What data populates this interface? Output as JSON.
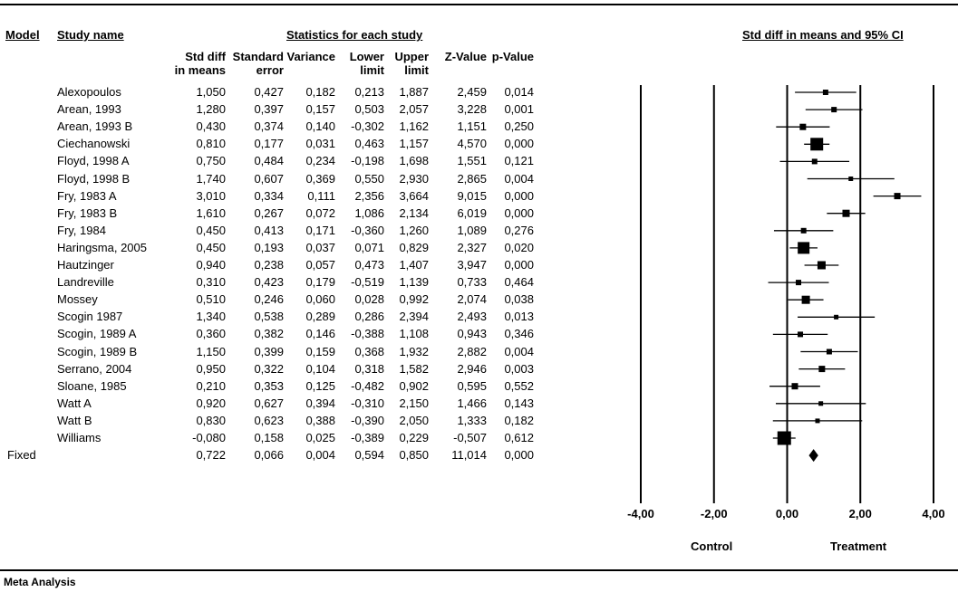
{
  "header": {
    "model": "Model",
    "study_name": "Study name",
    "stats_group": "Statistics for each study",
    "plot_title": "Std diff in means and 95% CI"
  },
  "columns": {
    "smd": [
      "Std diff",
      "in means"
    ],
    "se": [
      "Standard",
      "error"
    ],
    "variance": [
      "",
      "Variance"
    ],
    "lower": [
      "Lower",
      "limit"
    ],
    "upper": [
      "Upper",
      "limit"
    ],
    "z": [
      "",
      "Z-Value"
    ],
    "p": [
      "",
      "p-Value"
    ]
  },
  "footer": {
    "control": "Control",
    "treatment": "Treatment",
    "meta": "Meta Analysis"
  },
  "chart_data": {
    "type": "forest",
    "xlim": [
      -4,
      4
    ],
    "ticks": [
      "-4,00",
      "-2,00",
      "0,00",
      "2,00",
      "4,00"
    ],
    "tick_values": [
      -4,
      -2,
      0,
      2,
      4
    ],
    "studies": [
      {
        "name": "Alexopoulos",
        "smd": 1.05,
        "se": 0.427,
        "lower": 0.213,
        "upper": 1.887,
        "weight_box": 6,
        "cells": [
          "1,050",
          "0,427",
          "0,182",
          "0,213",
          "1,887",
          "2,459",
          "0,014"
        ]
      },
      {
        "name": "Arean, 1993",
        "smd": 1.28,
        "se": 0.397,
        "lower": 0.503,
        "upper": 2.057,
        "weight_box": 6,
        "cells": [
          "1,280",
          "0,397",
          "0,157",
          "0,503",
          "2,057",
          "3,228",
          "0,001"
        ]
      },
      {
        "name": "Arean, 1993 B",
        "smd": 0.43,
        "se": 0.374,
        "lower": -0.302,
        "upper": 1.162,
        "weight_box": 7,
        "cells": [
          "0,430",
          "0,374",
          "0,140",
          "-0,302",
          "1,162",
          "1,151",
          "0,250"
        ]
      },
      {
        "name": "Ciechanowski",
        "smd": 0.81,
        "se": 0.177,
        "lower": 0.463,
        "upper": 1.157,
        "weight_box": 14,
        "cells": [
          "0,810",
          "0,177",
          "0,031",
          "0,463",
          "1,157",
          "4,570",
          "0,000"
        ]
      },
      {
        "name": "Floyd, 1998 A",
        "smd": 0.75,
        "se": 0.484,
        "lower": -0.198,
        "upper": 1.698,
        "weight_box": 6,
        "cells": [
          "0,750",
          "0,484",
          "0,234",
          "-0,198",
          "1,698",
          "1,551",
          "0,121"
        ]
      },
      {
        "name": "Floyd, 1998 B",
        "smd": 1.74,
        "se": 0.607,
        "lower": 0.55,
        "upper": 2.93,
        "weight_box": 5,
        "cells": [
          "1,740",
          "0,607",
          "0,369",
          "0,550",
          "2,930",
          "2,865",
          "0,004"
        ]
      },
      {
        "name": "Fry, 1983 A",
        "smd": 3.01,
        "se": 0.334,
        "lower": 2.356,
        "upper": 3.664,
        "weight_box": 7,
        "cells": [
          "3,010",
          "0,334",
          "0,111",
          "2,356",
          "3,664",
          "9,015",
          "0,000"
        ]
      },
      {
        "name": "Fry, 1983 B",
        "smd": 1.61,
        "se": 0.267,
        "lower": 1.086,
        "upper": 2.134,
        "weight_box": 8,
        "cells": [
          "1,610",
          "0,267",
          "0,072",
          "1,086",
          "2,134",
          "6,019",
          "0,000"
        ]
      },
      {
        "name": "Fry, 1984",
        "smd": 0.45,
        "se": 0.413,
        "lower": -0.36,
        "upper": 1.26,
        "weight_box": 6,
        "cells": [
          "0,450",
          "0,413",
          "0,171",
          "-0,360",
          "1,260",
          "1,089",
          "0,276"
        ]
      },
      {
        "name": "Haringsma, 2005",
        "smd": 0.45,
        "se": 0.193,
        "lower": 0.071,
        "upper": 0.829,
        "weight_box": 13,
        "cells": [
          "0,450",
          "0,193",
          "0,037",
          "0,071",
          "0,829",
          "2,327",
          "0,020"
        ]
      },
      {
        "name": "Hautzinger",
        "smd": 0.94,
        "se": 0.238,
        "lower": 0.473,
        "upper": 1.407,
        "weight_box": 9,
        "cells": [
          "0,940",
          "0,238",
          "0,057",
          "0,473",
          "1,407",
          "3,947",
          "0,000"
        ]
      },
      {
        "name": "Landreville",
        "smd": 0.31,
        "se": 0.423,
        "lower": -0.519,
        "upper": 1.139,
        "weight_box": 6,
        "cells": [
          "0,310",
          "0,423",
          "0,179",
          "-0,519",
          "1,139",
          "0,733",
          "0,464"
        ]
      },
      {
        "name": "Mossey",
        "smd": 0.51,
        "se": 0.246,
        "lower": 0.028,
        "upper": 0.992,
        "weight_box": 9,
        "cells": [
          "0,510",
          "0,246",
          "0,060",
          "0,028",
          "0,992",
          "2,074",
          "0,038"
        ]
      },
      {
        "name": "Scogin 1987",
        "smd": 1.34,
        "se": 0.538,
        "lower": 0.286,
        "upper": 2.394,
        "weight_box": 5,
        "cells": [
          "1,340",
          "0,538",
          "0,289",
          "0,286",
          "2,394",
          "2,493",
          "0,013"
        ]
      },
      {
        "name": "Scogin, 1989 A",
        "smd": 0.36,
        "se": 0.382,
        "lower": -0.388,
        "upper": 1.108,
        "weight_box": 6,
        "cells": [
          "0,360",
          "0,382",
          "0,146",
          "-0,388",
          "1,108",
          "0,943",
          "0,346"
        ]
      },
      {
        "name": "Scogin, 1989 B",
        "smd": 1.15,
        "se": 0.399,
        "lower": 0.368,
        "upper": 1.932,
        "weight_box": 6,
        "cells": [
          "1,150",
          "0,399",
          "0,159",
          "0,368",
          "1,932",
          "2,882",
          "0,004"
        ]
      },
      {
        "name": "Serrano, 2004",
        "smd": 0.95,
        "se": 0.322,
        "lower": 0.318,
        "upper": 1.582,
        "weight_box": 7,
        "cells": [
          "0,950",
          "0,322",
          "0,104",
          "0,318",
          "1,582",
          "2,946",
          "0,003"
        ]
      },
      {
        "name": "Sloane, 1985",
        "smd": 0.21,
        "se": 0.353,
        "lower": -0.482,
        "upper": 0.902,
        "weight_box": 7,
        "cells": [
          "0,210",
          "0,353",
          "0,125",
          "-0,482",
          "0,902",
          "0,595",
          "0,552"
        ]
      },
      {
        "name": "Watt A",
        "smd": 0.92,
        "se": 0.627,
        "lower": -0.31,
        "upper": 2.15,
        "weight_box": 5,
        "cells": [
          "0,920",
          "0,627",
          "0,394",
          "-0,310",
          "2,150",
          "1,466",
          "0,143"
        ]
      },
      {
        "name": "Watt B",
        "smd": 0.83,
        "se": 0.623,
        "lower": -0.39,
        "upper": 2.05,
        "weight_box": 5,
        "cells": [
          "0,830",
          "0,623",
          "0,388",
          "-0,390",
          "2,050",
          "1,333",
          "0,182"
        ]
      },
      {
        "name": "Williams",
        "smd": -0.08,
        "se": 0.158,
        "lower": -0.389,
        "upper": 0.229,
        "weight_box": 15,
        "cells": [
          "-0,080",
          "0,158",
          "0,025",
          "-0,389",
          "0,229",
          "-0,507",
          "0,612"
        ]
      }
    ],
    "pooled": {
      "label": "Fixed",
      "smd": 0.722,
      "lower": 0.594,
      "upper": 0.85,
      "cells": [
        "0,722",
        "0,066",
        "0,004",
        "0,594",
        "0,850",
        "11,014",
        "0,000"
      ]
    }
  }
}
